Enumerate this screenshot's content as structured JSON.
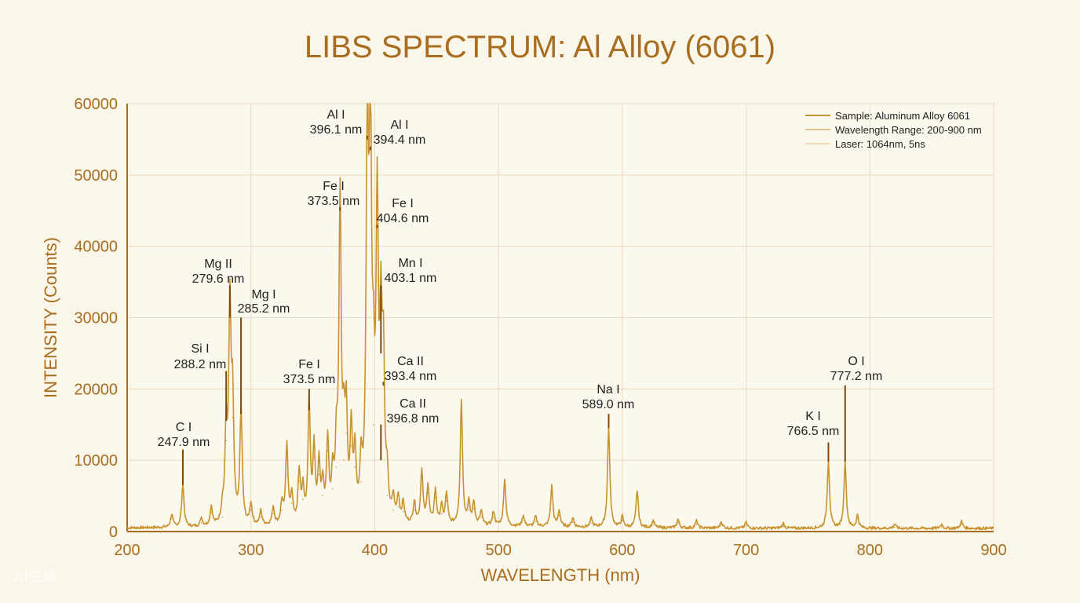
{
  "chart_data": {
    "type": "line",
    "title": "LIBS SPECTRUM: Al Alloy (6061)",
    "xlabel": "WAVELENGTH (nm)",
    "ylabel": "INTENSITY (Counts)",
    "xlim": [
      200,
      900
    ],
    "ylim": [
      0,
      60000
    ],
    "x_ticks": [
      200,
      300,
      400,
      500,
      600,
      700,
      800,
      900
    ],
    "y_ticks": [
      0,
      10000,
      20000,
      30000,
      40000,
      50000,
      60000
    ],
    "grid": true,
    "legend_position": "top-right",
    "legend": [
      "Sample: Aluminum Alloy 6061",
      "Wavelength Range: 200-900 nm",
      "Laser: 1064nm, 5ns"
    ],
    "peaks": [
      {
        "x": 236,
        "y": 1800
      },
      {
        "x": 245,
        "y": 6000
      },
      {
        "x": 260,
        "y": 1200
      },
      {
        "x": 268,
        "y": 2700
      },
      {
        "x": 277,
        "y": 2000
      },
      {
        "x": 280,
        "y": 12800
      },
      {
        "x": 283,
        "y": 29500
      },
      {
        "x": 285.2,
        "y": 16000
      },
      {
        "x": 292,
        "y": 16000
      },
      {
        "x": 300,
        "y": 3000
      },
      {
        "x": 308,
        "y": 2000
      },
      {
        "x": 318,
        "y": 2500
      },
      {
        "x": 325,
        "y": 3000
      },
      {
        "x": 329,
        "y": 11300
      },
      {
        "x": 333,
        "y": 4000
      },
      {
        "x": 339,
        "y": 7100
      },
      {
        "x": 342,
        "y": 4500
      },
      {
        "x": 347,
        "y": 16700
      },
      {
        "x": 351,
        "y": 10400
      },
      {
        "x": 355,
        "y": 8000
      },
      {
        "x": 358,
        "y": 5000
      },
      {
        "x": 362,
        "y": 11300
      },
      {
        "x": 366,
        "y": 6000
      },
      {
        "x": 369,
        "y": 9000
      },
      {
        "x": 372,
        "y": 45000
      },
      {
        "x": 375,
        "y": 10000
      },
      {
        "x": 377,
        "y": 13800
      },
      {
        "x": 381,
        "y": 12000
      },
      {
        "x": 384,
        "y": 9000
      },
      {
        "x": 389,
        "y": 7000
      },
      {
        "x": 394,
        "y": 55000
      },
      {
        "x": 396.5,
        "y": 53500
      },
      {
        "x": 399,
        "y": 15000
      },
      {
        "x": 402,
        "y": 42600
      },
      {
        "x": 405,
        "y": 25000
      },
      {
        "x": 407,
        "y": 20500
      },
      {
        "x": 410,
        "y": 5000
      },
      {
        "x": 415,
        "y": 3000
      },
      {
        "x": 419,
        "y": 3500
      },
      {
        "x": 423,
        "y": 2800
      },
      {
        "x": 432,
        "y": 3000
      },
      {
        "x": 438,
        "y": 7600
      },
      {
        "x": 443,
        "y": 5400
      },
      {
        "x": 449,
        "y": 4700
      },
      {
        "x": 454,
        "y": 2500
      },
      {
        "x": 458,
        "y": 4300
      },
      {
        "x": 470,
        "y": 17500
      },
      {
        "x": 476,
        "y": 3000
      },
      {
        "x": 480,
        "y": 3200
      },
      {
        "x": 486,
        "y": 2000
      },
      {
        "x": 496,
        "y": 2000
      },
      {
        "x": 505,
        "y": 6600
      },
      {
        "x": 520,
        "y": 1500
      },
      {
        "x": 530,
        "y": 1400
      },
      {
        "x": 543,
        "y": 5700
      },
      {
        "x": 549,
        "y": 2200
      },
      {
        "x": 560,
        "y": 1300
      },
      {
        "x": 575,
        "y": 1200
      },
      {
        "x": 589,
        "y": 14000
      },
      {
        "x": 600,
        "y": 1500
      },
      {
        "x": 612,
        "y": 5200
      },
      {
        "x": 625,
        "y": 1000
      },
      {
        "x": 645,
        "y": 1200
      },
      {
        "x": 660,
        "y": 1000
      },
      {
        "x": 680,
        "y": 900
      },
      {
        "x": 700,
        "y": 800
      },
      {
        "x": 730,
        "y": 700
      },
      {
        "x": 766.5,
        "y": 9500
      },
      {
        "x": 780,
        "y": 9500
      },
      {
        "x": 790,
        "y": 1800
      },
      {
        "x": 820,
        "y": 600
      },
      {
        "x": 858,
        "y": 600
      },
      {
        "x": 874,
        "y": 1000
      }
    ],
    "annotations": [
      {
        "element": "C I",
        "wavelength": "247.9 nm",
        "x": 245,
        "y_line_top": 11500,
        "y_line_bottom": 6500
      },
      {
        "element": "Si I",
        "wavelength": "288.2 nm",
        "x": 280,
        "y_line_top": 22500,
        "y_line_bottom": 15500
      },
      {
        "element": "Mg II",
        "wavelength": "279.6 nm",
        "x": 283,
        "y_line_top": 34500,
        "y_line_bottom": 30000
      },
      {
        "element": "Mg I",
        "wavelength": "285.2 nm",
        "x": 292,
        "y_line_top": 30000,
        "y_line_bottom": 16500
      },
      {
        "element": "Fe I",
        "wavelength": "373.5 nm",
        "x": 347,
        "y_line_top": 20000,
        "y_line_bottom": 17000
      },
      {
        "element": "Fe I",
        "wavelength": "373.5 nm",
        "x": 372,
        "y_line_top": 45500,
        "y_line_bottom": 45000
      },
      {
        "element": "Al I",
        "wavelength": "396.1 nm",
        "x": 394,
        "y_line_top": 55500,
        "y_line_bottom": 55000
      },
      {
        "element": "Al I",
        "wavelength": "394.4 nm",
        "x": 396.5,
        "y_line_top": 54000,
        "y_line_bottom": 53500
      },
      {
        "element": "Fe I",
        "wavelength": "404.6 nm",
        "x": 402,
        "y_line_top": 43000,
        "y_line_bottom": 42600
      },
      {
        "element": "Mn I",
        "wavelength": "403.1 nm",
        "x": 405,
        "y_line_top": 34500,
        "y_line_bottom": 25000
      },
      {
        "element": "Ca II",
        "wavelength": "393.4 nm",
        "x": 407,
        "y_line_top": 21000,
        "y_line_bottom": 20500
      },
      {
        "element": "Ca II",
        "wavelength": "396.8 nm",
        "x": 405,
        "y_line_top": 15000,
        "y_line_bottom": 10000
      },
      {
        "element": "Na I",
        "wavelength": "589.0 nm",
        "x": 589,
        "y_line_top": 16500,
        "y_line_bottom": 14500
      },
      {
        "element": "K I",
        "wavelength": "766.5 nm",
        "x": 766.5,
        "y_line_top": 12500,
        "y_line_bottom": 9800
      },
      {
        "element": "O I",
        "wavelength": "777.2 nm",
        "x": 780,
        "y_line_top": 20500,
        "y_line_bottom": 9800
      }
    ],
    "colors": {
      "line": "#c8922e",
      "accent": "#a86d1f",
      "grid": "#ead9bf",
      "annotation_line": "#7a4a10",
      "text": "#222222",
      "legend_line_2": "#e0c48a",
      "legend_line_3": "#eedcb5"
    }
  },
  "watermark": "AI生成"
}
